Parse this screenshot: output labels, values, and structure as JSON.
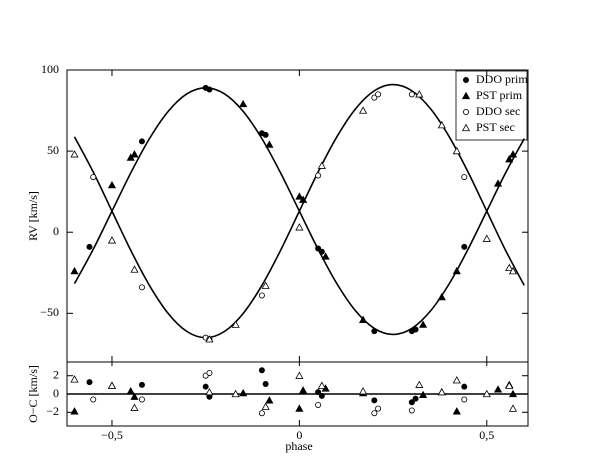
{
  "chart_data": {
    "type": "scatter",
    "xlabel": "phase",
    "ylabel": "RV [km/s]",
    "xlim": [
      -0.62,
      0.61
    ],
    "xticks": [
      {
        "value": -0.5,
        "label": "−0,5"
      },
      0,
      {
        "value": 0.5,
        "label": "0,5"
      }
    ],
    "ylim": [
      -80,
      100
    ],
    "yticks": [
      {
        "value": -50,
        "label": "−50"
      },
      0,
      50,
      100
    ],
    "legend": "upper right",
    "fit_x": [
      -0.6,
      -0.55,
      -0.5,
      -0.45,
      -0.4,
      -0.35,
      -0.3,
      -0.25,
      -0.2,
      -0.15,
      -0.1,
      -0.05,
      0,
      0.05,
      0.1,
      0.15,
      0.2,
      0.25,
      0.3,
      0.35,
      0.4,
      0.45,
      0.5,
      0.55,
      0.6
    ],
    "fit_primary": [
      -31.7,
      -10.5,
      13,
      36.5,
      57.7,
      74.5,
      85.3,
      89,
      85.3,
      74.5,
      57.7,
      36.5,
      13,
      -10.5,
      -31.7,
      -48.5,
      -59.3,
      -63,
      -59.3,
      -48.5,
      -31.7,
      -10.5,
      13,
      36.5,
      57.7
    ],
    "fit_secondary": [
      58.8,
      37.1,
      13,
      -11.1,
      -32.8,
      -50.1,
      -61.2,
      -65,
      -61.2,
      -50.1,
      -32.8,
      -11.1,
      13,
      37.1,
      58.8,
      76.1,
      87.2,
      91,
      87.2,
      76.1,
      58.8,
      37.1,
      13,
      -11.1,
      -32.8
    ],
    "residual_panel": {
      "ylabel": "O−C [km/s]",
      "ylim": [
        -3.5,
        3.5
      ],
      "yticks": [
        {
          "value": -2,
          "label": "−2"
        },
        0,
        2
      ]
    },
    "series": [
      {
        "name": "DDO prim",
        "marker": "circle",
        "filled": true,
        "color": "#000000",
        "x": [
          -0.56,
          -0.42,
          -0.25,
          -0.24,
          -0.1,
          -0.09,
          0.05,
          0.06,
          0.2,
          0.3,
          0.31,
          0.44
        ],
        "values": [
          -9,
          56,
          89,
          88,
          61,
          60,
          -10,
          -12,
          -61,
          -61,
          -60,
          -9
        ],
        "residuals": [
          1.3,
          1.0,
          0.8,
          -0.3,
          2.6,
          1.1,
          0.2,
          -0.2,
          -0.7,
          -0.9,
          -0.5,
          0.8
        ]
      },
      {
        "name": "PST prim",
        "marker": "triangle",
        "filled": true,
        "color": "#000000",
        "x": [
          -0.6,
          -0.5,
          -0.45,
          -0.44,
          -0.15,
          -0.08,
          0.0,
          0.01,
          0.07,
          0.17,
          0.33,
          0.38,
          0.42,
          0.53,
          0.56,
          0.57
        ],
        "values": [
          -24,
          29,
          46,
          48,
          79,
          54,
          22,
          20,
          -15,
          -54,
          -57,
          -40,
          -24,
          30,
          45,
          48
        ],
        "residuals": [
          -1.9,
          0.9,
          0.3,
          -0.3,
          0.1,
          -0.7,
          -1.6,
          0.4,
          0.6,
          0.1,
          -0.1,
          0.2,
          -1.9,
          0.5,
          1.0,
          0.0
        ]
      },
      {
        "name": "DDO sec",
        "marker": "circle",
        "filled": false,
        "color": "#000000",
        "x": [
          -0.55,
          -0.42,
          -0.25,
          -0.24,
          -0.1,
          0.05,
          0.2,
          0.21,
          0.3,
          0.44
        ],
        "values": [
          34,
          -34,
          -65,
          -66,
          -39,
          35,
          83,
          85,
          85,
          34
        ],
        "residuals": [
          -0.6,
          -0.6,
          2.0,
          2.3,
          -2.1,
          -1.2,
          -2.1,
          -1.6,
          -1.8,
          -0.6
        ]
      },
      {
        "name": "PST sec",
        "marker": "triangle",
        "filled": false,
        "color": "#000000",
        "x": [
          -0.6,
          -0.5,
          -0.44,
          -0.24,
          -0.17,
          -0.09,
          0.0,
          0.06,
          0.17,
          0.32,
          0.38,
          0.42,
          0.5,
          0.56,
          0.57
        ],
        "values": [
          48,
          -5,
          -23,
          -66,
          -57,
          -33,
          3,
          41,
          75,
          85,
          66,
          50,
          -4,
          -22,
          -24
        ],
        "residuals": [
          1.6,
          0.9,
          -1.5,
          0.2,
          0.0,
          -1.4,
          2.0,
          0.9,
          0.3,
          1.0,
          0.2,
          1.5,
          0.0,
          0.9,
          -1.6
        ]
      }
    ]
  }
}
